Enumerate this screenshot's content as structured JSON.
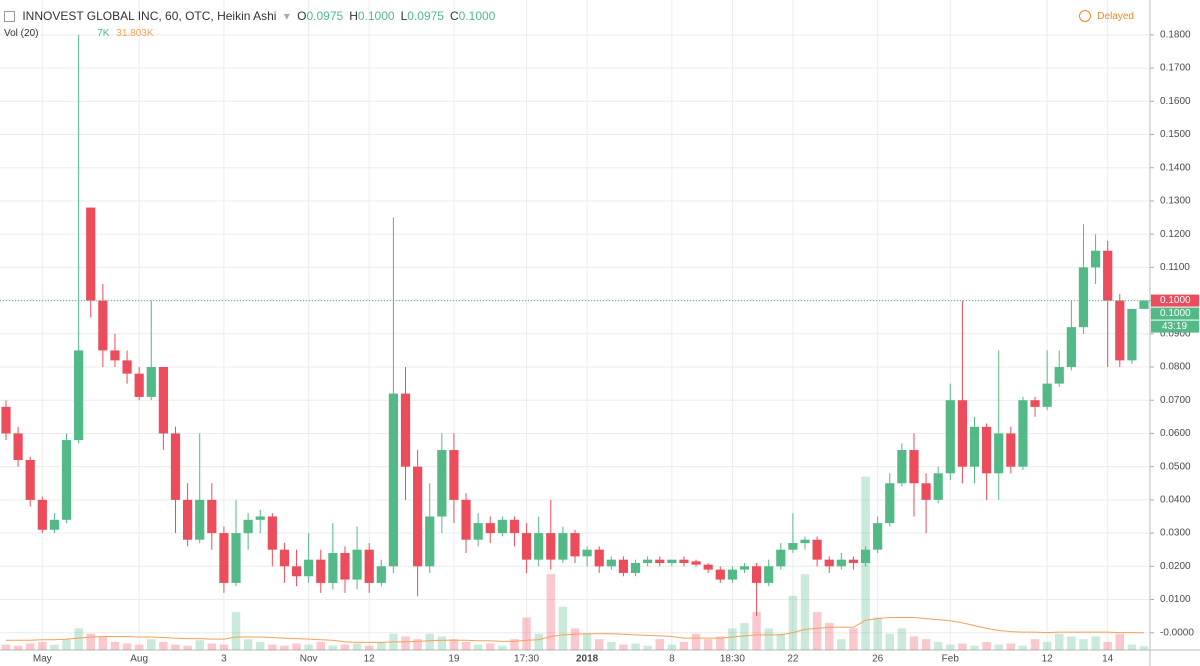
{
  "chart_data": {
    "type": "candlestick",
    "title": "INNOVEST GLOBAL INC, 60, OTC, Heikin Ashi",
    "ohlc_header": [
      {
        "label": "O",
        "text": "0.0975"
      },
      {
        "label": "H",
        "text": "0.1000"
      },
      {
        "label": "L",
        "text": "0.0975"
      },
      {
        "label": "C",
        "text": "0.1000"
      }
    ],
    "status": "Delayed",
    "volume_title": "Vol (20)",
    "volume_header": [
      "7K",
      "31.803K"
    ],
    "categories": [
      null,
      null,
      null,
      "May",
      null,
      null,
      null,
      null,
      null,
      null,
      null,
      "Aug",
      null,
      null,
      null,
      null,
      null,
      null,
      "3",
      null,
      null,
      null,
      null,
      null,
      null,
      "Nov",
      null,
      null,
      null,
      null,
      "12",
      null,
      null,
      null,
      null,
      null,
      null,
      "19",
      null,
      null,
      null,
      null,
      null,
      "17:30",
      null,
      null,
      null,
      null,
      "2018",
      null,
      null,
      null,
      null,
      null,
      null,
      "8",
      null,
      null,
      null,
      null,
      "18:30",
      null,
      null,
      null,
      null,
      "22",
      null,
      null,
      null,
      null,
      null,
      null,
      "26",
      null,
      null,
      null,
      null,
      null,
      "Feb",
      null,
      null,
      null,
      null,
      null,
      null,
      null,
      "12",
      null,
      null,
      null,
      null,
      "14",
      null,
      null,
      null
    ],
    "bold_categories": [
      "2018"
    ],
    "up_color": "#53b987",
    "down_color": "#eb4d5c",
    "series": [
      {
        "open": [
          0.068,
          0.06,
          0.052,
          0.04,
          0.031,
          0.034,
          0.058,
          0.128,
          0.1,
          0.085,
          0.082,
          0.078,
          0.071,
          0.08,
          0.06,
          0.04,
          0.028,
          0.04,
          0.03,
          0.015,
          0.03,
          0.034,
          0.035,
          0.025,
          0.02,
          0.017,
          0.022,
          0.015,
          0.024,
          0.016,
          0.025,
          0.015,
          0.02,
          0.072,
          0.05,
          0.02,
          0.035,
          0.055,
          0.04,
          0.028,
          0.033,
          0.03,
          0.034,
          0.03,
          0.022,
          0.03,
          0.022,
          0.03,
          0.023,
          0.025,
          0.02,
          0.022,
          0.018,
          0.021,
          0.022,
          0.021,
          0.022,
          0.0215,
          0.0205,
          0.019,
          0.016,
          0.019,
          0.02,
          0.015,
          0.02,
          0.025,
          0.027,
          0.028,
          0.022,
          0.02,
          0.022,
          0.021,
          0.025,
          0.033,
          0.045,
          0.055,
          0.045,
          0.04,
          0.048,
          0.07,
          0.05,
          0.062,
          0.048,
          0.06,
          0.05,
          0.07,
          0.068,
          0.075,
          0.08,
          0.092,
          0.11,
          0.115,
          0.1,
          0.082,
          0.0975
        ],
        "high": [
          0.07,
          0.062,
          0.053,
          0.041,
          0.036,
          0.06,
          0.18,
          0.128,
          0.105,
          0.09,
          0.085,
          0.08,
          0.1,
          0.08,
          0.062,
          0.045,
          0.06,
          0.045,
          0.032,
          0.04,
          0.036,
          0.037,
          0.036,
          0.027,
          0.025,
          0.03,
          0.025,
          0.033,
          0.026,
          0.032,
          0.027,
          0.022,
          0.125,
          0.08,
          0.055,
          0.045,
          0.06,
          0.06,
          0.042,
          0.036,
          0.035,
          0.035,
          0.035,
          0.033,
          0.035,
          0.04,
          0.032,
          0.031,
          0.026,
          0.026,
          0.023,
          0.023,
          0.022,
          0.023,
          0.023,
          0.022,
          0.023,
          0.022,
          0.021,
          0.02,
          0.02,
          0.021,
          0.021,
          0.022,
          0.027,
          0.036,
          0.029,
          0.029,
          0.023,
          0.024,
          0.023,
          0.026,
          0.035,
          0.048,
          0.057,
          0.06,
          0.048,
          0.05,
          0.075,
          0.1,
          0.065,
          0.063,
          0.085,
          0.062,
          0.071,
          0.071,
          0.085,
          0.085,
          0.1,
          0.123,
          0.12,
          0.118,
          0.102,
          0.0975,
          0.1
        ],
        "low": [
          0.058,
          0.05,
          0.038,
          0.03,
          0.03,
          0.033,
          0.057,
          0.095,
          0.08,
          0.08,
          0.075,
          0.07,
          0.07,
          0.055,
          0.03,
          0.026,
          0.027,
          0.025,
          0.012,
          0.014,
          0.025,
          0.03,
          0.02,
          0.015,
          0.014,
          0.015,
          0.012,
          0.013,
          0.012,
          0.013,
          0.012,
          0.014,
          0.018,
          0.04,
          0.011,
          0.018,
          0.03,
          0.033,
          0.024,
          0.026,
          0.027,
          0.029,
          0.026,
          0.018,
          0.02,
          0.019,
          0.021,
          0.021,
          0.02,
          0.018,
          0.019,
          0.017,
          0.017,
          0.02,
          0.02,
          0.02,
          0.02,
          0.02,
          0.018,
          0.015,
          0.015,
          0.018,
          0.005,
          0.014,
          0.019,
          0.024,
          0.025,
          0.02,
          0.018,
          0.019,
          0.019,
          0.02,
          0.024,
          0.032,
          0.044,
          0.035,
          0.03,
          0.039,
          0.046,
          0.045,
          0.045,
          0.04,
          0.04,
          0.048,
          0.049,
          0.065,
          0.067,
          0.074,
          0.079,
          0.09,
          0.105,
          0.08,
          0.08,
          0.081,
          0.0975
        ],
        "close": [
          0.06,
          0.052,
          0.04,
          0.031,
          0.034,
          0.058,
          0.085,
          0.1,
          0.085,
          0.082,
          0.078,
          0.071,
          0.08,
          0.06,
          0.04,
          0.028,
          0.04,
          0.03,
          0.015,
          0.03,
          0.034,
          0.035,
          0.025,
          0.02,
          0.017,
          0.022,
          0.015,
          0.024,
          0.016,
          0.025,
          0.015,
          0.02,
          0.072,
          0.05,
          0.02,
          0.035,
          0.055,
          0.04,
          0.028,
          0.033,
          0.03,
          0.034,
          0.03,
          0.022,
          0.03,
          0.022,
          0.03,
          0.023,
          0.025,
          0.02,
          0.022,
          0.018,
          0.021,
          0.022,
          0.021,
          0.022,
          0.021,
          0.0205,
          0.019,
          0.016,
          0.019,
          0.02,
          0.015,
          0.02,
          0.025,
          0.027,
          0.028,
          0.022,
          0.02,
          0.022,
          0.021,
          0.025,
          0.033,
          0.045,
          0.055,
          0.045,
          0.04,
          0.048,
          0.07,
          0.05,
          0.062,
          0.048,
          0.06,
          0.05,
          0.07,
          0.068,
          0.075,
          0.08,
          0.092,
          0.11,
          0.115,
          0.1,
          0.082,
          0.0975,
          0.1
        ],
        "volume": [
          10,
          8,
          12,
          15,
          10,
          20,
          40,
          30,
          25,
          15,
          12,
          10,
          20,
          15,
          10,
          8,
          18,
          12,
          10,
          70,
          20,
          15,
          10,
          8,
          12,
          10,
          15,
          8,
          10,
          12,
          8,
          15,
          30,
          25,
          20,
          30,
          25,
          20,
          15,
          10,
          12,
          8,
          20,
          60,
          30,
          140,
          80,
          40,
          30,
          20,
          15,
          10,
          12,
          8,
          20,
          10,
          15,
          30,
          20,
          25,
          40,
          50,
          70,
          40,
          30,
          100,
          140,
          70,
          50,
          20,
          40,
          320,
          60,
          30,
          40,
          25,
          20,
          15,
          10,
          12,
          8,
          15,
          10,
          12,
          8,
          20,
          15,
          30,
          25,
          20,
          25,
          15,
          30,
          10,
          7
        ],
        "volume_ma": [
          18,
          18,
          18,
          19,
          19,
          20,
          22,
          24,
          25,
          25,
          25,
          24,
          24,
          23,
          22,
          21,
          21,
          20,
          20,
          24,
          24,
          24,
          23,
          22,
          21,
          20,
          19,
          18,
          15,
          14,
          14,
          14,
          15,
          15,
          16,
          17,
          18,
          18,
          18,
          17,
          17,
          16,
          16,
          18,
          19,
          25,
          28,
          29,
          30,
          30,
          30,
          29,
          28,
          27,
          26,
          25,
          22,
          22,
          22,
          22,
          24,
          26,
          28,
          28,
          28,
          32,
          38,
          40,
          42,
          42,
          42,
          55,
          58,
          60,
          60,
          60,
          58,
          56,
          54,
          50,
          45,
          40,
          36,
          34,
          33,
          33,
          32,
          33,
          33,
          33,
          33,
          33,
          32,
          32,
          31.803
        ]
      }
    ],
    "volume_ma_color": "#f5a05a",
    "vol_ylim": [
      0,
      600
    ],
    "ylim": [
      -0.0052,
      0.1905
    ],
    "yticks": [
      {
        "value": 0,
        "label": "-0.0000"
      },
      {
        "value": 0.01,
        "label": "0.0100"
      },
      {
        "value": 0.02,
        "label": "0.0200"
      },
      {
        "value": 0.03,
        "label": "0.0300"
      },
      {
        "value": 0.04,
        "label": "0.0400"
      },
      {
        "value": 0.05,
        "label": "0.0500"
      },
      {
        "value": 0.06,
        "label": "0.0600"
      },
      {
        "value": 0.07,
        "label": "0.0700"
      },
      {
        "value": 0.08,
        "label": "0.0800"
      },
      {
        "value": 0.09,
        "label": "0.0900"
      },
      {
        "value": 0.1,
        "label": "0.1000"
      },
      {
        "value": 0.11,
        "label": "0.1100"
      },
      {
        "value": 0.12,
        "label": "0.1200"
      },
      {
        "value": 0.13,
        "label": "0.1300"
      },
      {
        "value": 0.14,
        "label": "0.1400"
      },
      {
        "value": 0.15,
        "label": "0.1500"
      },
      {
        "value": 0.16,
        "label": "0.1600"
      },
      {
        "value": 0.17,
        "label": "0.1700"
      },
      {
        "value": 0.18,
        "label": "0.1800"
      }
    ],
    "grid": true,
    "price_tags": [
      {
        "value": 0.1,
        "label": "0.1000",
        "color": "#eb4d5c"
      },
      {
        "value": 0.1,
        "label": "0.1000",
        "color": "#53b987"
      }
    ],
    "countdown": "43:19"
  }
}
